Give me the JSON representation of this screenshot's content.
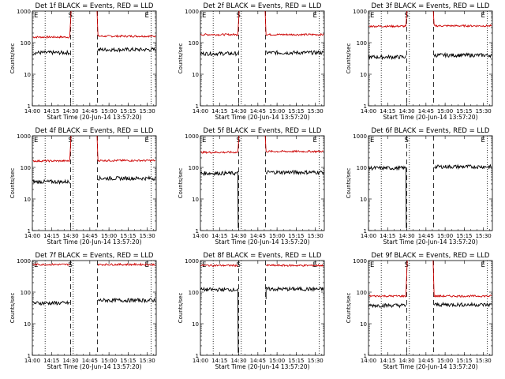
{
  "chart_data": [
    {
      "type": "line",
      "title": "Det 1f BLACK = Events, RED = LLD",
      "xlabel": "Start Time (20-Jun-14 13:57:20)",
      "ylabel": "Counts/sec",
      "ylog": true,
      "ylim": [
        1,
        1000
      ],
      "xlim": [
        "14:00",
        "15:37"
      ],
      "xticks": [
        "14:00",
        "14:15",
        "14:30",
        "14:45",
        "15:00",
        "15:15",
        "15:30"
      ],
      "yticks": [
        "1",
        "10",
        "100",
        "1000"
      ],
      "markers": [
        "E",
        "S",
        "E"
      ],
      "dotted_lines": [
        "14:10",
        "14:32",
        "15:33"
      ],
      "dashed_lines": [
        "14:30",
        "14:51"
      ],
      "series": [
        {
          "name": "RED = LLD",
          "color": "#cc0000",
          "pre_level": 150,
          "post_level": 160,
          "saturates": true
        },
        {
          "name": "BLACK = Events",
          "color": "#000000",
          "pre_level": 48,
          "post_level": 60,
          "gap": true
        }
      ]
    },
    {
      "type": "line",
      "title": "Det 2f BLACK = Events, RED = LLD",
      "xlabel": "Start Time (20-Jun-14 13:57:20)",
      "ylabel": "Counts/sec",
      "ylog": true,
      "ylim": [
        1,
        1000
      ],
      "xlim": [
        "14:00",
        "15:37"
      ],
      "xticks": [
        "14:00",
        "14:15",
        "14:30",
        "14:45",
        "15:00",
        "15:15",
        "15:30"
      ],
      "yticks": [
        "1",
        "10",
        "100",
        "1000"
      ],
      "markers": [
        "E",
        "S",
        "E"
      ],
      "dotted_lines": [
        "14:10",
        "14:32",
        "15:33"
      ],
      "dashed_lines": [
        "14:30",
        "14:51"
      ],
      "series": [
        {
          "name": "RED = LLD",
          "color": "#cc0000",
          "pre_level": 180,
          "post_level": 180,
          "saturates": true
        },
        {
          "name": "BLACK = Events",
          "color": "#000000",
          "pre_level": 45,
          "post_level": 48,
          "gap": true
        }
      ]
    },
    {
      "type": "line",
      "title": "Det 3f BLACK = Events, RED = LLD",
      "xlabel": "Start Time (20-Jun-14 13:57:20)",
      "ylabel": "Counts/sec",
      "ylog": true,
      "ylim": [
        1,
        1000
      ],
      "xlim": [
        "14:00",
        "15:37"
      ],
      "xticks": [
        "14:00",
        "14:15",
        "14:30",
        "14:45",
        "15:00",
        "15:15",
        "15:30"
      ],
      "yticks": [
        "1",
        "10",
        "100",
        "1000"
      ],
      "markers": [
        "E",
        "S",
        "E"
      ],
      "dotted_lines": [
        "14:10",
        "14:32",
        "15:33"
      ],
      "dashed_lines": [
        "14:30",
        "14:51"
      ],
      "series": [
        {
          "name": "RED = LLD",
          "color": "#cc0000",
          "pre_level": 330,
          "post_level": 340,
          "saturates": true
        },
        {
          "name": "BLACK = Events",
          "color": "#000000",
          "pre_level": 35,
          "post_level": 40,
          "gap": true
        }
      ]
    },
    {
      "type": "line",
      "title": "Det 4f BLACK = Events, RED = LLD",
      "xlabel": "Start Time (20-Jun-14 13:57:20)",
      "ylabel": "Counts/sec",
      "ylog": true,
      "ylim": [
        1,
        1000
      ],
      "xlim": [
        "14:00",
        "15:37"
      ],
      "xticks": [
        "14:00",
        "14:15",
        "14:30",
        "14:45",
        "15:00",
        "15:15",
        "15:30"
      ],
      "yticks": [
        "1",
        "10",
        "100",
        "1000"
      ],
      "markers": [
        "E",
        "S",
        "E"
      ],
      "dotted_lines": [
        "14:10",
        "14:32",
        "15:33"
      ],
      "dashed_lines": [
        "14:30",
        "14:51"
      ],
      "series": [
        {
          "name": "RED = LLD",
          "color": "#cc0000",
          "pre_level": 160,
          "post_level": 165,
          "saturates": true
        },
        {
          "name": "BLACK = Events",
          "color": "#000000",
          "pre_level": 35,
          "post_level": 45,
          "gap": true
        }
      ]
    },
    {
      "type": "line",
      "title": "Det 5f BLACK = Events, RED = LLD",
      "xlabel": "Start Time (20-Jun-14 13:57:20)",
      "ylabel": "Counts/sec",
      "ylog": true,
      "ylim": [
        1,
        1000
      ],
      "xlim": [
        "14:00",
        "15:37"
      ],
      "xticks": [
        "14:00",
        "14:15",
        "14:30",
        "14:45",
        "15:00",
        "15:15",
        "15:30"
      ],
      "yticks": [
        "1",
        "10",
        "100",
        "1000"
      ],
      "markers": [
        "E",
        "S",
        "E"
      ],
      "dotted_lines": [
        "14:10",
        "14:32",
        "15:33"
      ],
      "dashed_lines": [
        "14:30",
        "14:51"
      ],
      "series": [
        {
          "name": "RED = LLD",
          "color": "#cc0000",
          "pre_level": 300,
          "post_level": 320,
          "saturates": true
        },
        {
          "name": "BLACK = Events",
          "color": "#000000",
          "pre_level": 65,
          "post_level": 70,
          "gap": true,
          "dropout": true
        }
      ]
    },
    {
      "type": "line",
      "title": "Det 6f BLACK = Events, RED = LLD",
      "xlabel": "Start Time (20-Jun-14 13:57:20)",
      "ylabel": "Counts/sec",
      "ylog": true,
      "ylim": [
        1,
        1000
      ],
      "xlim": [
        "14:00",
        "15:37"
      ],
      "xticks": [
        "14:00",
        "14:15",
        "14:30",
        "14:45",
        "15:00",
        "15:15",
        "15:30"
      ],
      "yticks": [
        "1",
        "10",
        "100",
        "1000"
      ],
      "markers": [
        "E",
        "S",
        "E"
      ],
      "dotted_lines": [
        "14:10",
        "14:32",
        "15:33"
      ],
      "dashed_lines": [
        "14:30",
        "14:51"
      ],
      "series": [
        {
          "name": "BLACK = Events",
          "color": "#000000",
          "pre_level": 95,
          "post_level": 105,
          "gap": true,
          "dropout": true
        }
      ]
    },
    {
      "type": "line",
      "title": "Det 7f BLACK = Events, RED = LLD",
      "xlabel": "Start Time (20-Jun-14 13:57:20)",
      "ylabel": "Counts/sec",
      "ylog": true,
      "ylim": [
        1,
        1000
      ],
      "xlim": [
        "14:00",
        "15:37"
      ],
      "xticks": [
        "14:00",
        "14:15",
        "14:30",
        "14:45",
        "15:00",
        "15:15",
        "15:30"
      ],
      "yticks": [
        "1",
        "10",
        "100",
        "1000"
      ],
      "markers": [
        "E",
        "S",
        "E"
      ],
      "dotted_lines": [
        "14:10",
        "14:32",
        "15:33"
      ],
      "dashed_lines": [
        "14:30",
        "14:51"
      ],
      "series": [
        {
          "name": "RED = LLD",
          "color": "#cc0000",
          "pre_level": 750,
          "post_level": 750,
          "saturates": false
        },
        {
          "name": "BLACK = Events",
          "color": "#000000",
          "pre_level": 45,
          "post_level": 55,
          "gap": true
        }
      ]
    },
    {
      "type": "line",
      "title": "Det 8f BLACK = Events, RED = LLD",
      "xlabel": "Start Time (20-Jun-14 13:57:20)",
      "ylabel": "Counts/sec",
      "ylog": true,
      "ylim": [
        1,
        1000
      ],
      "xlim": [
        "14:00",
        "15:37"
      ],
      "xticks": [
        "14:00",
        "14:15",
        "14:30",
        "14:45",
        "15:00",
        "15:15",
        "15:30"
      ],
      "yticks": [
        "1",
        "10",
        "100",
        "1000"
      ],
      "markers": [
        "E",
        "S",
        "E"
      ],
      "dotted_lines": [
        "14:10",
        "14:32",
        "15:33"
      ],
      "dashed_lines": [
        "14:30",
        "14:51"
      ],
      "series": [
        {
          "name": "RED = LLD",
          "color": "#cc0000",
          "pre_level": 700,
          "post_level": 700,
          "saturates": false
        },
        {
          "name": "BLACK = Events",
          "color": "#000000",
          "pre_level": 120,
          "post_level": 125,
          "gap": true,
          "dropout": true
        }
      ]
    },
    {
      "type": "line",
      "title": "Det 9f BLACK = Events, RED = LLD",
      "xlabel": "Start Time (20-Jun-14 13:57:20)",
      "ylabel": "Counts/sec",
      "ylog": true,
      "ylim": [
        1,
        1000
      ],
      "xlim": [
        "14:00",
        "15:37"
      ],
      "xticks": [
        "14:00",
        "14:15",
        "14:30",
        "14:45",
        "15:00",
        "15:15",
        "15:30"
      ],
      "yticks": [
        "1",
        "10",
        "100",
        "1000"
      ],
      "markers": [
        "E",
        "S",
        "E"
      ],
      "dotted_lines": [
        "14:10",
        "14:32",
        "15:33"
      ],
      "dashed_lines": [
        "14:30",
        "14:51"
      ],
      "series": [
        {
          "name": "RED = LLD",
          "color": "#cc0000",
          "pre_level": 75,
          "post_level": 75,
          "saturates": true
        },
        {
          "name": "BLACK = Events",
          "color": "#000000",
          "pre_level": 38,
          "post_level": 40,
          "gap": true
        }
      ]
    }
  ]
}
